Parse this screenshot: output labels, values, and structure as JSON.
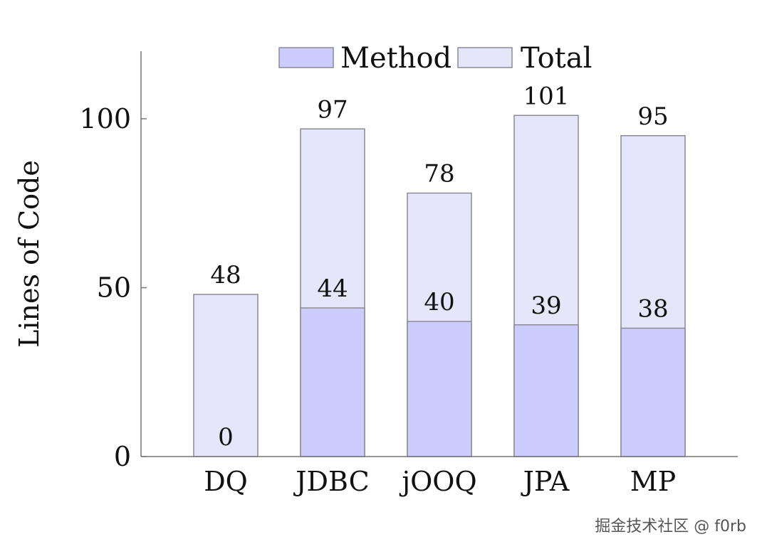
{
  "chart_data": {
    "type": "bar",
    "stacked": false,
    "categories": [
      "DQ",
      "JDBC",
      "jOOQ",
      "JPA",
      "MP"
    ],
    "series": [
      {
        "name": "Method",
        "values": [
          0,
          44,
          40,
          39,
          38
        ],
        "color": "#ccccff"
      },
      {
        "name": "Total",
        "values": [
          48,
          97,
          78,
          101,
          95
        ],
        "color": "#e6e6fb"
      }
    ],
    "ylabel": "Lines of Code",
    "xlabel": "",
    "ylim": [
      0,
      120
    ],
    "yticks": [
      0,
      50,
      100
    ],
    "legend": "top-center",
    "grid": false,
    "edge_color": "#8a8a96",
    "axis_color": "#777777"
  },
  "watermark": "掘金技术社区 @ f0rb"
}
